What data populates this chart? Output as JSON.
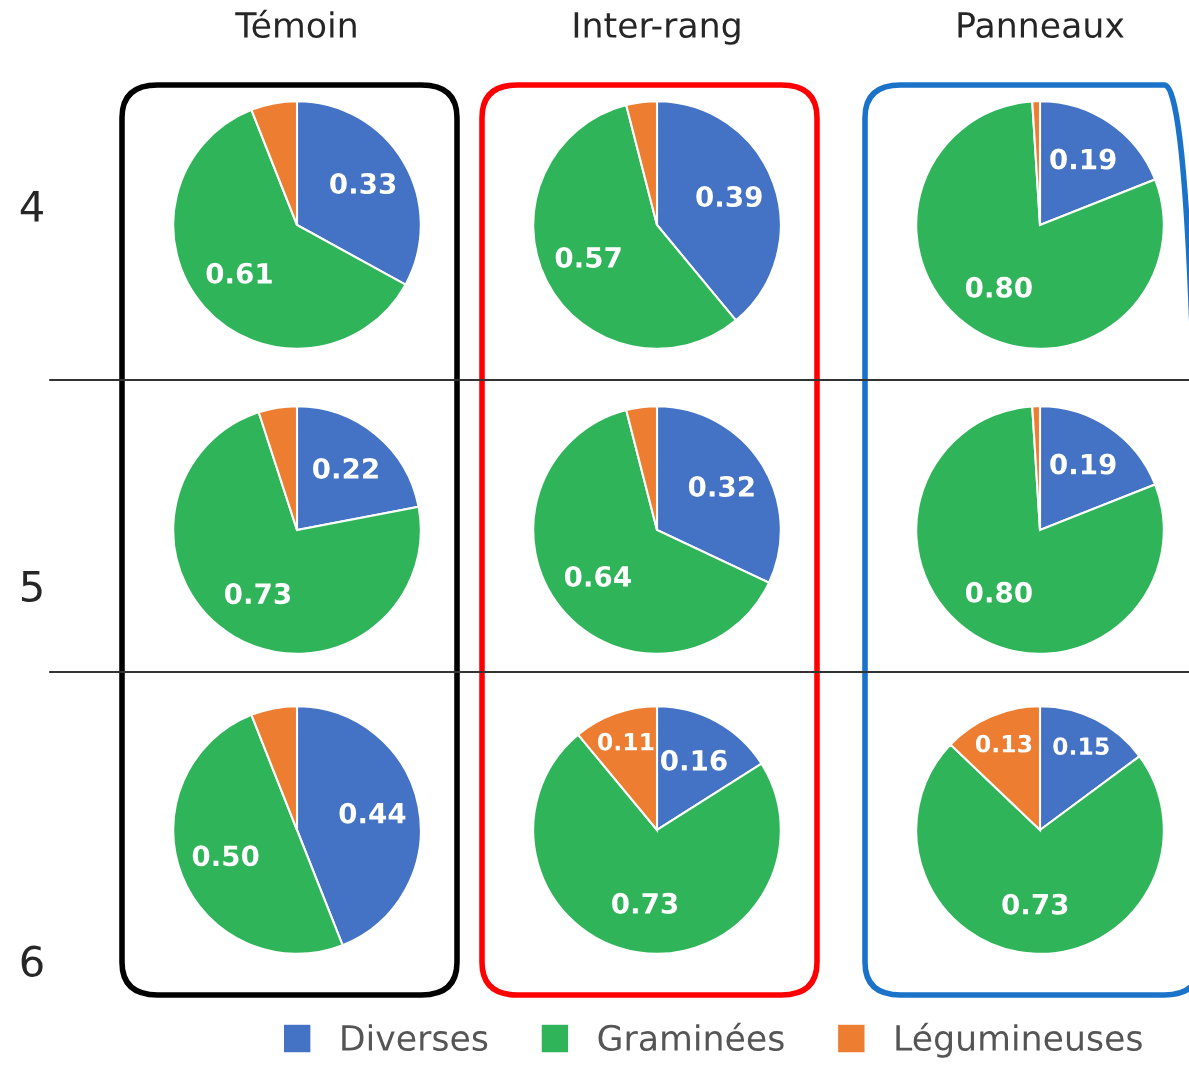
{
  "chart_data": [
    {
      "type": "pie",
      "title": "Témoin",
      "ylabel": "4",
      "legend": "bottom",
      "categories": [
        "Diverses",
        "Graminées",
        "Légumineuses"
      ],
      "values": [
        0.33,
        0.61,
        0.06
      ],
      "colors": [
        "#4472c4",
        "#2fb45a",
        "#ed7d31"
      ],
      "value_labels": [
        "0.33",
        "0.61",
        null
      ]
    },
    {
      "type": "pie",
      "title": "Inter-rang",
      "categories": [
        null,
        null,
        null
      ],
      "values": [
        0.39,
        0.57,
        0.04
      ],
      "colors": [
        "#4472c4",
        "#2fb45a",
        "#ed7d31"
      ],
      "value_labels": [
        "0.39",
        "0.57",
        null
      ]
    },
    {
      "type": "pie",
      "title": "Panneaux",
      "categories": [
        null,
        null,
        null
      ],
      "values": [
        0.19,
        0.8,
        0.01
      ],
      "colors": [
        "#4472c4",
        "#2fb45a",
        "#ed7d31"
      ],
      "value_labels": [
        "0.19",
        "0.80",
        null
      ]
    },
    {
      "type": "pie",
      "ylabel": "5",
      "categories": [
        null,
        null,
        null
      ],
      "values": [
        0.22,
        0.73,
        0.05
      ],
      "colors": [
        "#4472c4",
        "#2fb45a",
        "#ed7d31"
      ],
      "value_labels": [
        "0.22",
        "0.73",
        null
      ]
    },
    {
      "type": "pie",
      "categories": [
        null,
        null,
        null
      ],
      "values": [
        0.32,
        0.64,
        0.04
      ],
      "colors": [
        "#4472c4",
        "#2fb45a",
        "#ed7d31"
      ],
      "value_labels": [
        "0.32",
        "0.64",
        null
      ]
    },
    {
      "type": "pie",
      "categories": [
        null,
        null,
        null
      ],
      "values": [
        0.19,
        0.8,
        0.01
      ],
      "colors": [
        "#4472c4",
        "#2fb45a",
        "#ed7d31"
      ],
      "value_labels": [
        "0.19",
        "0.80",
        null
      ]
    },
    {
      "type": "pie",
      "ylabel": "6",
      "categories": [
        null,
        null,
        null
      ],
      "values": [
        0.44,
        0.5,
        0.06
      ],
      "colors": [
        "#4472c4",
        "#2fb45a",
        "#ed7d31"
      ],
      "value_labels": [
        "0.44",
        "0.50",
        null
      ]
    },
    {
      "type": "pie",
      "categories": [
        null,
        null,
        null
      ],
      "values": [
        0.16,
        0.73,
        0.11
      ],
      "colors": [
        "#4472c4",
        "#2fb45a",
        "#ed7d31"
      ],
      "value_labels": [
        "0.16",
        "0.73",
        "0.11"
      ]
    },
    {
      "type": "pie",
      "categories": [
        null,
        null,
        null
      ],
      "values": [
        0.15,
        0.73,
        0.13
      ],
      "colors": [
        "#4472c4",
        "#2fb45a",
        "#ed7d31"
      ],
      "value_labels": [
        "0.15",
        "0.73",
        "0.13"
      ]
    }
  ]
}
